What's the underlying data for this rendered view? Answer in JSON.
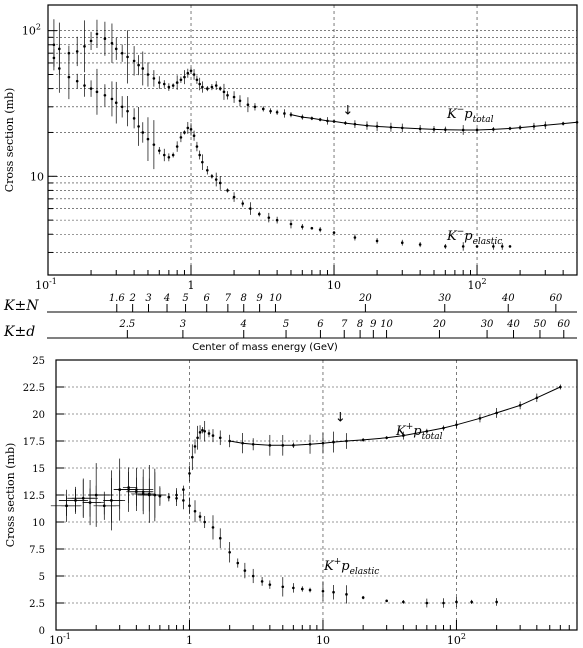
{
  "scale_labels": {
    "kn_label": "K±N",
    "kd_label": "K±d",
    "kn_ticks": [
      "1.6",
      "2",
      "3",
      "4",
      "5",
      "6",
      "7",
      "8",
      "9",
      "10",
      "20",
      "30",
      "40",
      "60"
    ],
    "kd_ticks": [
      "2.5",
      "3",
      "4",
      "5",
      "6",
      "7",
      "8",
      "9",
      "10",
      "20",
      "30",
      "40",
      "50",
      "60"
    ],
    "center_of_mass_label": "Center of mass energy (GeV)"
  },
  "chart_data": [
    {
      "type": "scatter",
      "panel": "top",
      "log_x": true,
      "log_y": true,
      "xlim": [
        0.1,
        500
      ],
      "ylim": [
        2.1,
        150
      ],
      "ylabel": "Cross section (mb)",
      "x_ticks": [
        "10",
        "1",
        "10",
        "10"
      ],
      "x_tick_superscripts": [
        "-1",
        "",
        "",
        "2"
      ],
      "y_ticks": [
        "10",
        "10"
      ],
      "y_tick_superscripts": [
        "2",
        ""
      ],
      "grid": true,
      "series": [
        {
          "name": "K⁻p total",
          "label_main": "K",
          "label_sup": "−",
          "label_base": "p",
          "label_sub": "total",
          "x": [
            0.11,
            0.12,
            0.14,
            0.16,
            0.18,
            0.2,
            0.22,
            0.25,
            0.28,
            0.3,
            0.33,
            0.36,
            0.4,
            0.43,
            0.46,
            0.5,
            0.55,
            0.6,
            0.65,
            0.7,
            0.75,
            0.8,
            0.85,
            0.9,
            0.95,
            1.0,
            1.05,
            1.1,
            1.15,
            1.2,
            1.3,
            1.4,
            1.5,
            1.6,
            1.7,
            1.8,
            2.0,
            2.2,
            2.5,
            2.8,
            3.2,
            3.6,
            4.0,
            4.5,
            5.0,
            6.0,
            7.0,
            8.0,
            9.0,
            10,
            12,
            14,
            17,
            20,
            25,
            30,
            40,
            50,
            60,
            80,
            100,
            130,
            170,
            200,
            250,
            300,
            400,
            500
          ],
          "y": [
            80,
            75,
            70,
            72,
            78,
            85,
            95,
            88,
            82,
            75,
            70,
            66,
            62,
            58,
            55,
            50,
            47,
            44,
            43,
            41,
            42,
            44,
            46,
            48,
            51,
            53,
            50,
            46,
            43,
            41,
            40,
            41,
            42,
            40,
            38,
            36,
            35,
            33,
            31,
            30,
            29,
            28,
            27.5,
            27,
            26.5,
            25.5,
            25,
            24.5,
            24,
            23.8,
            23.2,
            22.8,
            22.3,
            22,
            21.7,
            21.5,
            21.2,
            21,
            20.9,
            20.8,
            20.8,
            21,
            21.3,
            21.6,
            22,
            22.4,
            23,
            23.5
          ]
        },
        {
          "name": "K⁻p elastic",
          "label_main": "K",
          "label_sup": "−",
          "label_base": "p",
          "label_sub": "elastic",
          "x": [
            0.11,
            0.12,
            0.14,
            0.16,
            0.18,
            0.2,
            0.22,
            0.25,
            0.28,
            0.3,
            0.33,
            0.36,
            0.4,
            0.43,
            0.46,
            0.5,
            0.55,
            0.6,
            0.65,
            0.7,
            0.75,
            0.8,
            0.85,
            0.9,
            0.95,
            1.0,
            1.05,
            1.1,
            1.15,
            1.2,
            1.3,
            1.4,
            1.5,
            1.6,
            1.8,
            2.0,
            2.3,
            2.6,
            3.0,
            3.5,
            4.0,
            5.0,
            6.0,
            7.0,
            8.0,
            10,
            14,
            20,
            30,
            40,
            60,
            80,
            100,
            130,
            150,
            170
          ],
          "y": [
            65,
            55,
            48,
            45,
            42,
            40,
            38,
            36,
            34,
            32,
            30,
            28,
            25,
            22,
            20,
            18,
            16.5,
            15,
            14,
            13.5,
            14,
            16,
            18.5,
            20,
            21.5,
            21,
            19,
            16,
            14,
            12.5,
            11,
            10,
            9.5,
            9,
            8,
            7.2,
            6.5,
            6,
            5.5,
            5.2,
            5,
            4.7,
            4.5,
            4.4,
            4.3,
            4.1,
            3.8,
            3.6,
            3.5,
            3.4,
            3.3,
            3.3,
            3.3,
            3.3,
            3.3,
            3.3
          ]
        }
      ],
      "annotations": [
        "↓"
      ]
    },
    {
      "type": "scatter",
      "panel": "bottom",
      "log_x": true,
      "log_y": false,
      "xlim": [
        0.1,
        800
      ],
      "ylim": [
        0,
        25
      ],
      "ylabel": "Cross section (mb)",
      "x_ticks": [
        "10",
        "1",
        "10",
        "10"
      ],
      "x_tick_superscripts": [
        "-1",
        "",
        "",
        "2"
      ],
      "y_ticks": [
        "0",
        "2.5",
        "5",
        "7.5",
        "10",
        "12.5",
        "15",
        "17.5",
        "20",
        "22.5",
        "25"
      ],
      "grid": true,
      "series": [
        {
          "name": "K⁺p total",
          "label_main": "K",
          "label_sup": "+",
          "label_base": "p",
          "label_sub": "total",
          "x": [
            0.12,
            0.14,
            0.16,
            0.18,
            0.2,
            0.23,
            0.26,
            0.3,
            0.35,
            0.4,
            0.45,
            0.5,
            0.55,
            0.6,
            0.7,
            0.8,
            0.9,
            1.0,
            1.05,
            1.1,
            1.15,
            1.2,
            1.25,
            1.3,
            1.4,
            1.5,
            1.7,
            2.0,
            2.5,
            3.0,
            4.0,
            5.0,
            6.0,
            8.0,
            10,
            12,
            15,
            20,
            30,
            40,
            60,
            80,
            100,
            150,
            200,
            300,
            400,
            600
          ],
          "y": [
            11.5,
            12,
            12.2,
            11.8,
            12.5,
            11.5,
            12,
            13,
            13.2,
            13,
            12.8,
            12.6,
            12.5,
            12.4,
            12.3,
            12.5,
            13,
            14.5,
            16,
            17,
            17.8,
            18.3,
            18.5,
            18.4,
            18.2,
            18,
            17.8,
            17.5,
            17.3,
            17.2,
            17.1,
            17.1,
            17.1,
            17.2,
            17.3,
            17.4,
            17.5,
            17.6,
            17.8,
            18,
            18.4,
            18.7,
            19,
            19.6,
            20.1,
            20.8,
            21.5,
            22.5
          ]
        },
        {
          "name": "K⁺p elastic",
          "label_main": "K",
          "label_sup": "+",
          "label_base": "p",
          "label_sub": "elastic",
          "x": [
            0.12,
            0.14,
            0.16,
            0.18,
            0.2,
            0.23,
            0.26,
            0.3,
            0.35,
            0.4,
            0.45,
            0.5,
            0.55,
            0.6,
            0.7,
            0.8,
            0.9,
            1.0,
            1.1,
            1.2,
            1.3,
            1.5,
            1.7,
            2.0,
            2.3,
            2.6,
            3.0,
            3.5,
            4.0,
            5.0,
            6.0,
            7.0,
            8.0,
            10,
            12,
            15,
            20,
            30,
            40,
            60,
            80,
            100,
            130,
            200
          ],
          "y": [
            11.5,
            12,
            12.2,
            11.8,
            12.5,
            11.5,
            12,
            13,
            13,
            12.8,
            12.6,
            12.5,
            12.5,
            12.4,
            12.3,
            12.2,
            12,
            11.5,
            11,
            10.5,
            10,
            9.5,
            8.5,
            7.2,
            6.2,
            5.5,
            5,
            4.5,
            4.2,
            4,
            3.9,
            3.8,
            3.7,
            3.6,
            3.5,
            3.3,
            3,
            2.7,
            2.6,
            2.5,
            2.5,
            2.6,
            2.6,
            2.6
          ]
        }
      ],
      "annotations": [
        "↓"
      ]
    }
  ]
}
